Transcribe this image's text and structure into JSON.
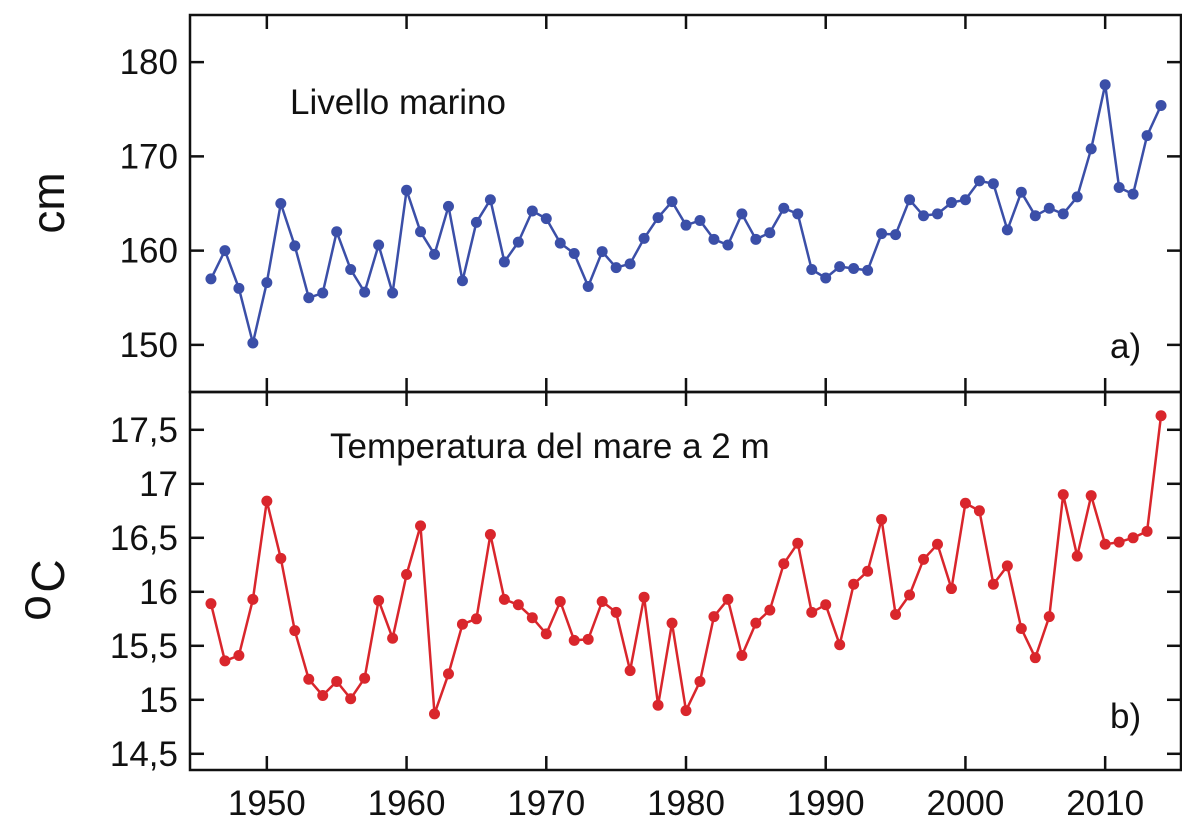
{
  "chart_data": [
    {
      "type": "line",
      "panel_label": "a)",
      "title": "Livello marino",
      "xlabel": "",
      "ylabel": "cm",
      "xlim": [
        1944.5,
        2015.5
      ],
      "ylim": [
        145,
        185
      ],
      "yticks": [
        150,
        160,
        170,
        180
      ],
      "ytick_labels": [
        "150",
        "160",
        "170",
        "180"
      ],
      "grid": false,
      "color": "#3b4fa8",
      "series": [
        {
          "x": [
            1946,
            1947,
            1948,
            1949,
            1950,
            1951,
            1952,
            1953,
            1954,
            1955,
            1956,
            1957,
            1958,
            1959,
            1960,
            1961,
            1962,
            1963,
            1964,
            1965,
            1966,
            1967,
            1968,
            1969,
            1970,
            1971,
            1972,
            1973,
            1974,
            1975,
            1976,
            1977,
            1978,
            1979,
            1980,
            1981,
            1982,
            1983,
            1984,
            1985,
            1986,
            1987,
            1988,
            1989,
            1990,
            1991,
            1992,
            1993,
            1994,
            1995,
            1996,
            1997,
            1998,
            1999,
            2000,
            2001,
            2002,
            2003,
            2004,
            2005,
            2006,
            2007,
            2008,
            2009,
            2010,
            2011,
            2012,
            2013,
            2014
          ],
          "y": [
            157,
            160,
            156,
            150.2,
            156.6,
            165,
            160.5,
            155,
            155.5,
            162,
            158,
            155.6,
            160.6,
            155.5,
            166.4,
            162,
            159.6,
            164.7,
            156.8,
            163,
            165.4,
            158.8,
            160.9,
            164.2,
            163.4,
            160.8,
            159.7,
            156.2,
            159.9,
            158.2,
            158.6,
            161.3,
            163.5,
            165.2,
            162.7,
            163.2,
            161.2,
            160.6,
            163.9,
            161.2,
            161.9,
            164.5,
            163.9,
            158,
            157.1,
            158.3,
            158.1,
            157.9,
            161.8,
            161.7,
            165.4,
            163.7,
            163.9,
            165.1,
            165.4,
            167.4,
            167.1,
            162.2,
            166.2,
            163.7,
            164.5,
            163.9,
            165.7,
            170.8,
            177.6,
            166.7,
            166,
            172.2,
            175.4
          ]
        }
      ]
    },
    {
      "type": "line",
      "panel_label": "b)",
      "title": "Temperatura del mare a 2 m",
      "xlabel": "",
      "ylabel_prefix": "o",
      "ylabel": "C",
      "xlim": [
        1944.5,
        2015.5
      ],
      "ylim": [
        14.35,
        17.85
      ],
      "xticks": [
        1950,
        1960,
        1970,
        1980,
        1990,
        2000,
        2010
      ],
      "xtick_labels": [
        "1950",
        "1960",
        "1970",
        "1980",
        "1990",
        "2000",
        "2010"
      ],
      "yticks": [
        14.5,
        15,
        15.5,
        16,
        16.5,
        17,
        17.5
      ],
      "ytick_labels": [
        "14,5",
        "15",
        "15,5",
        "16",
        "16,5",
        "17",
        "17,5"
      ],
      "grid": false,
      "color": "#d9262c",
      "series": [
        {
          "x": [
            1946,
            1947,
            1948,
            1949,
            1950,
            1951,
            1952,
            1953,
            1954,
            1955,
            1956,
            1957,
            1958,
            1959,
            1960,
            1961,
            1962,
            1963,
            1964,
            1965,
            1966,
            1967,
            1968,
            1969,
            1970,
            1971,
            1972,
            1973,
            1974,
            1975,
            1976,
            1977,
            1978,
            1979,
            1980,
            1981,
            1982,
            1983,
            1984,
            1985,
            1986,
            1987,
            1988,
            1989,
            1990,
            1991,
            1992,
            1993,
            1994,
            1995,
            1996,
            1997,
            1998,
            1999,
            2000,
            2001,
            2002,
            2003,
            2004,
            2005,
            2006,
            2007,
            2008,
            2009,
            2010,
            2011,
            2012,
            2013,
            2014
          ],
          "y": [
            15.89,
            15.36,
            15.41,
            15.93,
            16.84,
            16.31,
            15.64,
            15.19,
            15.04,
            15.17,
            15.01,
            15.2,
            15.92,
            15.57,
            16.16,
            16.61,
            14.87,
            15.24,
            15.7,
            15.75,
            16.53,
            15.93,
            15.88,
            15.76,
            15.61,
            15.91,
            15.55,
            15.56,
            15.91,
            15.81,
            15.27,
            15.95,
            14.95,
            15.71,
            14.9,
            15.17,
            15.77,
            15.93,
            15.41,
            15.71,
            15.83,
            16.26,
            16.45,
            15.81,
            15.88,
            15.51,
            16.07,
            16.19,
            16.67,
            15.79,
            15.97,
            16.3,
            16.44,
            16.03,
            16.82,
            16.75,
            16.07,
            16.24,
            15.66,
            15.39,
            15.77,
            16.9,
            16.33,
            16.89,
            16.44,
            16.46,
            16.5,
            16.56,
            17.63
          ]
        }
      ]
    }
  ]
}
